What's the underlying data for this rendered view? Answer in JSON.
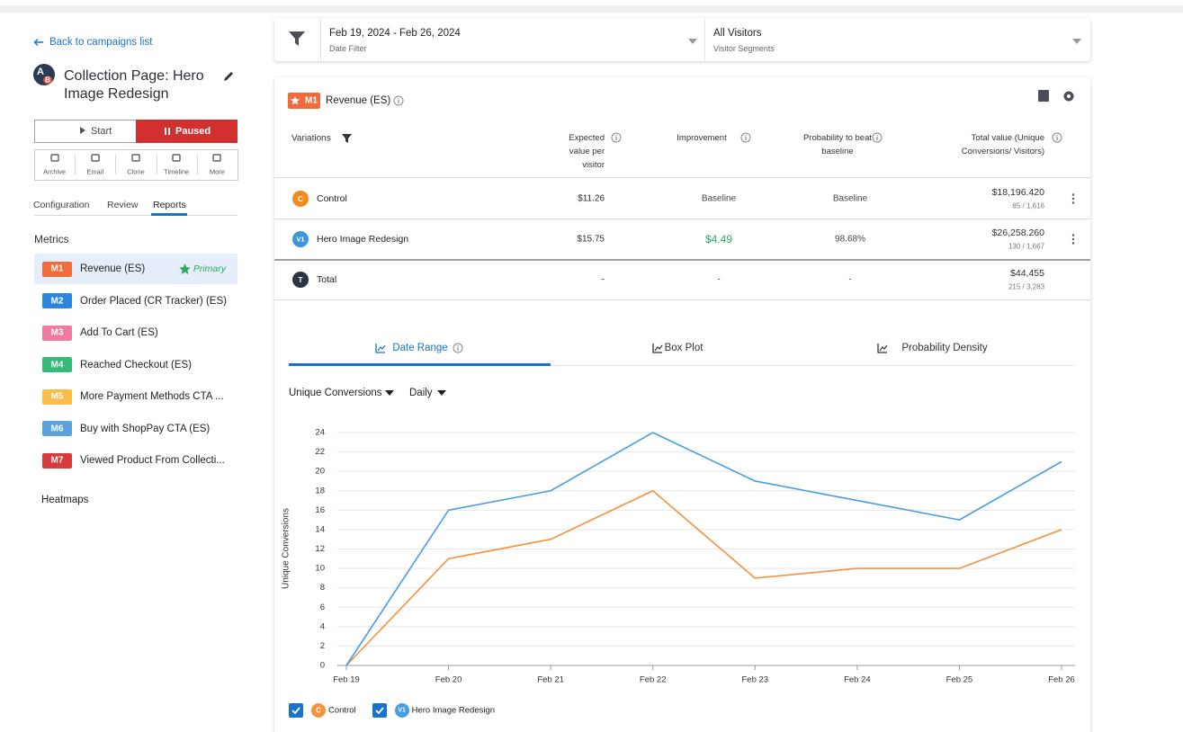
{
  "sidebar": {
    "back_link": "Back to campaigns list",
    "icon_letters": [
      "A",
      "B"
    ],
    "title": "Collection Page: Hero Image Redesign",
    "start_button": "Start",
    "status_button": "Paused",
    "actions": [
      "Archive",
      "Email",
      "Clone",
      "Timeline",
      "More"
    ],
    "tabs": [
      "Configuration",
      "Review",
      "Reports"
    ],
    "active_tab": 2,
    "metrics_heading": "Metrics",
    "metrics": [
      {
        "code": "M1",
        "name": "Revenue (ES)",
        "color": "#f26b3a"
      },
      {
        "code": "M2",
        "name": "Order Placed (CR Tracker) (ES)",
        "color": "#2b86e0"
      },
      {
        "code": "M3",
        "name": "Add To Cart (ES)",
        "color": "#f07aa0"
      },
      {
        "code": "M4",
        "name": "Reached Checkout (ES)",
        "color": "#37b97a"
      },
      {
        "code": "M5",
        "name": "More Payment Methods CTA ...",
        "color": "#f8bd4a"
      },
      {
        "code": "M6",
        "name": "Buy with ShopPay CTA (ES)",
        "color": "#5aa3dc"
      },
      {
        "code": "M7",
        "name": "Viewed Product From Collecti...",
        "color": "#d83a3a"
      }
    ],
    "active_metric": 0,
    "primary_metric": 0,
    "primary_label": "Primary",
    "heatmaps": "Heatmaps"
  },
  "filters": {
    "date_range": "Feb 19, 2024 - Feb 26, 2024",
    "date_caption": "Date Filter",
    "segment": "All Visitors",
    "segment_caption": "Visitor Segments"
  },
  "report": {
    "metric_code": "M1",
    "metric_name": "Revenue (ES)",
    "columns": [
      "Variations",
      "Expected value per visitor",
      "Improvement",
      "Probability to beat baseline",
      "Total value (Unique Conversions/ Visitors)"
    ],
    "rows": [
      {
        "badge": "C",
        "badge_color": "#f28a1e",
        "name": "Control",
        "expected": "$11.26",
        "improvement": "Baseline",
        "probability": "Baseline",
        "total": "$18,196.420",
        "counts": "85 / 1,616"
      },
      {
        "badge": "V1",
        "badge_color": "#3d95de",
        "name": "Hero Image Redesign",
        "expected": "$15.75",
        "improvement": "$4.49",
        "improvement_color": "#2eaa5c",
        "probability": "98.68%",
        "total": "$26,258.260",
        "counts": "130 / 1,667"
      },
      {
        "badge": "T",
        "badge_color": "#2b3445",
        "name": "Total",
        "expected": "-",
        "improvement": "-",
        "probability": "-",
        "total": "$44,455",
        "counts": "215 / 3,283"
      }
    ],
    "chart_tabs": [
      "Date Range",
      "Box Plot",
      "Probability Density"
    ],
    "active_chart_tab": 0,
    "selectors": [
      "Unique Conversions",
      "Daily"
    ]
  },
  "chart_data": {
    "type": "line",
    "y_label": "Unique Conversions",
    "categories": [
      "Feb 19",
      "Feb 20",
      "Feb 21",
      "Feb 22",
      "Feb 23",
      "Feb 24",
      "Feb 25",
      "Feb 26"
    ],
    "series": [
      {
        "name": "Control",
        "badge": "C",
        "color": "#f5923e",
        "values": [
          0,
          11,
          13,
          18,
          9,
          10,
          10,
          14
        ]
      },
      {
        "name": "Hero Image Redesign",
        "badge": "V1",
        "color": "#4a9de0",
        "values": [
          0,
          16,
          18,
          24,
          19,
          17,
          15,
          21
        ]
      }
    ],
    "ylim": [
      0,
      24
    ],
    "yticks": [
      0,
      2,
      4,
      6,
      8,
      10,
      12,
      14,
      16,
      18,
      20,
      22,
      24
    ],
    "grid": true
  }
}
